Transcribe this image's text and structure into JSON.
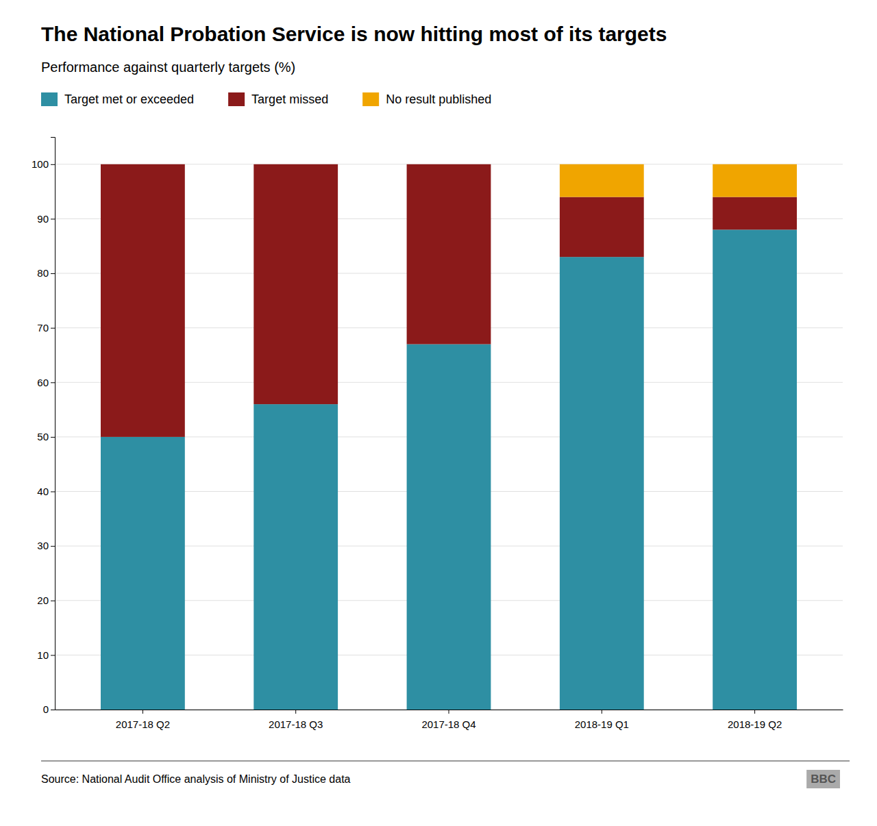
{
  "chart_data": {
    "type": "bar",
    "title": "The National Probation Service is now hitting most of its targets",
    "subtitle": "Performance against quarterly targets (%)",
    "categories": [
      "2017-18 Q2",
      "2017-18 Q3",
      "2017-18 Q4",
      "2018-19 Q1",
      "2018-19 Q2"
    ],
    "series": [
      {
        "name": "Target met or exceeded",
        "color": "#2e8fa3",
        "values": [
          50,
          56,
          67,
          83,
          88
        ]
      },
      {
        "name": "Target missed",
        "color": "#8b1a1a",
        "values": [
          50,
          44,
          33,
          11,
          6
        ]
      },
      {
        "name": "No result published",
        "color": "#f0a500",
        "values": [
          0,
          0,
          0,
          6,
          6
        ]
      }
    ],
    "stacked": true,
    "ylim": [
      0,
      105
    ],
    "yticks": [
      0,
      10,
      20,
      30,
      40,
      50,
      60,
      70,
      80,
      90,
      100
    ],
    "grid": true,
    "legend": "top",
    "annotations": [
      "Source: National Audit Office analysis of Ministry of Justice data",
      "BBC"
    ]
  }
}
